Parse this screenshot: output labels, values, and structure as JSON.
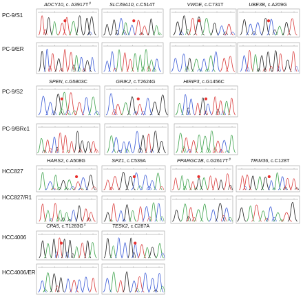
{
  "rows": [
    {
      "label": "PC-9/S1"
    },
    {
      "label": "PC-9/ER"
    },
    {
      "label": "PC-9/S2"
    },
    {
      "label": "PC-9/BRc1"
    },
    {
      "label": "HCC827"
    },
    {
      "label": "HCC827/R1"
    },
    {
      "label": "HCC4006"
    },
    {
      "label": "HCC4006/ER"
    }
  ],
  "genes": [
    {
      "gene": "ADCY10",
      "mutation": ", c. A3917T",
      "mark": "#"
    },
    {
      "gene": "SLC39A10",
      "mutation": ", c.C514T",
      "mark": ""
    },
    {
      "gene": "VWDE",
      "mutation": ", c.C731T",
      "mark": ""
    },
    {
      "gene": "UBE3B",
      "mutation": ", c.A209G",
      "mark": ""
    },
    {
      "gene": "SPEN",
      "mutation": ", c.G5803C",
      "mark": ""
    },
    {
      "gene": "GRIK2",
      "mutation": ", c.T2624G",
      "mark": ""
    },
    {
      "gene": "HIRIP3",
      "mutation": ", c.G1456C",
      "mark": ""
    },
    {
      "gene": "HARS2",
      "mutation": ", c.A508G",
      "mark": ""
    },
    {
      "gene": "SPZ1",
      "mutation": ", c.C539A",
      "mark": ""
    },
    {
      "gene": "PPARGC1B",
      "mutation": ", c.G2617T",
      "mark": "#"
    },
    {
      "gene": "TRIM36",
      "mutation": ", c.C128T",
      "mark": ""
    },
    {
      "gene": "CPA5",
      "mutation": ", c.T1283G",
      "mark": "#"
    },
    {
      "gene": "TESK2",
      "mutation": ", c.C287A",
      "mark": ""
    }
  ],
  "colors": {
    "A": "#3fa34d",
    "C": "#3b5bd6",
    "G": "#222222",
    "T": "#d93a3a",
    "mutation_marker": "#e8302e",
    "panel_border": "#9a9a9a",
    "panel_ruler": "#6f6f6f"
  }
}
